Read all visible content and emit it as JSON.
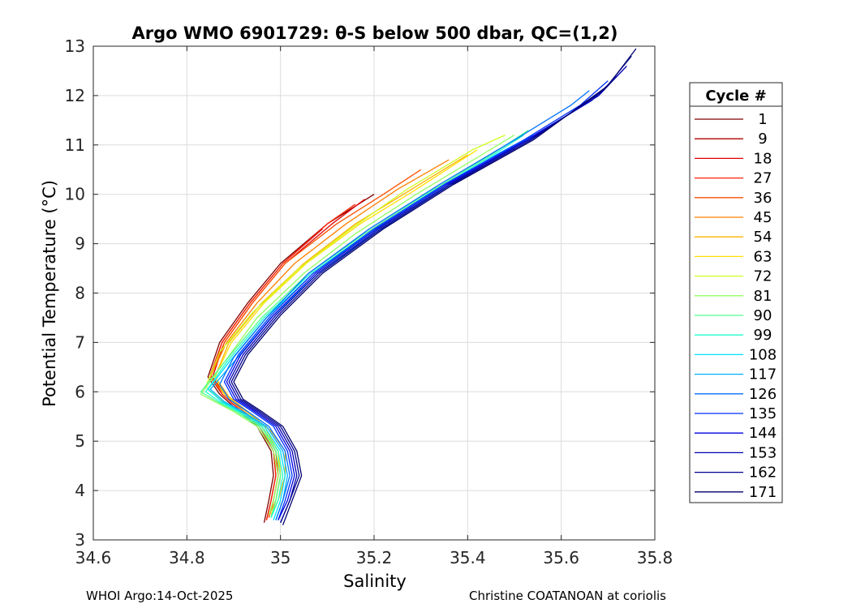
{
  "chart_data": {
    "type": "line",
    "title": "Argo WMO 6901729: θ-S below 500 dbar,  QC=(1,2)",
    "xlabel": "Salinity",
    "ylabel": "Potential Temperature (°C)",
    "xlim": [
      34.6,
      35.8
    ],
    "ylim": [
      3,
      13
    ],
    "xticks": [
      34.6,
      34.8,
      35,
      35.2,
      35.4,
      35.6,
      35.8
    ],
    "xtick_labels": [
      "34.6",
      "34.8",
      "35",
      "35.2",
      "35.4",
      "35.6",
      "35.8"
    ],
    "yticks": [
      3,
      4,
      5,
      6,
      7,
      8,
      9,
      10,
      11,
      12,
      13
    ],
    "ytick_labels": [
      "3",
      "4",
      "5",
      "6",
      "7",
      "8",
      "9",
      "10",
      "11",
      "12",
      "13"
    ],
    "grid": true,
    "legend": {
      "title": "Cycle #",
      "placement": "outside-right",
      "entries": [
        {
          "label": "1",
          "color": "#800000"
        },
        {
          "label": "9",
          "color": "#b00000"
        },
        {
          "label": "18",
          "color": "#e00000"
        },
        {
          "label": "27",
          "color": "#ff2000"
        },
        {
          "label": "36",
          "color": "#ff5000"
        },
        {
          "label": "45",
          "color": "#ff8000"
        },
        {
          "label": "54",
          "color": "#ffb000"
        },
        {
          "label": "63",
          "color": "#ffe000"
        },
        {
          "label": "72",
          "color": "#d0ff20"
        },
        {
          "label": "81",
          "color": "#90ff60"
        },
        {
          "label": "90",
          "color": "#50ff90"
        },
        {
          "label": "99",
          "color": "#20ffd0"
        },
        {
          "label": "108",
          "color": "#00e0ff"
        },
        {
          "label": "117",
          "color": "#00b0ff"
        },
        {
          "label": "126",
          "color": "#0070ff"
        },
        {
          "label": "135",
          "color": "#0030ff"
        },
        {
          "label": "144",
          "color": "#0000e0"
        },
        {
          "label": "153",
          "color": "#0000b0"
        },
        {
          "label": "162",
          "color": "#000090"
        },
        {
          "label": "171",
          "color": "#000070"
        }
      ]
    },
    "series": [
      {
        "name": "1",
        "color": "#800000",
        "S": [
          34.965,
          34.975,
          34.985,
          34.98,
          34.95,
          34.9,
          34.87,
          34.845,
          34.87,
          34.93,
          35.0,
          35.1,
          35.2
        ],
        "T": [
          3.35,
          3.8,
          4.3,
          4.8,
          5.3,
          5.7,
          5.95,
          6.3,
          7.0,
          7.8,
          8.6,
          9.4,
          10.0
        ]
      },
      {
        "name": "9",
        "color": "#b00000",
        "S": [
          34.97,
          34.98,
          34.99,
          34.985,
          34.955,
          34.905,
          34.875,
          34.85,
          34.875,
          34.935,
          35.005,
          35.09
        ],
        "T": [
          3.4,
          3.8,
          4.3,
          4.8,
          5.3,
          5.7,
          5.95,
          6.3,
          7.0,
          7.8,
          8.6,
          9.3
        ]
      },
      {
        "name": "18",
        "color": "#e00000",
        "S": [
          34.975,
          34.985,
          34.995,
          34.99,
          34.96,
          34.91,
          34.88,
          34.855,
          34.88,
          34.94,
          35.01,
          35.11,
          35.18
        ],
        "T": [
          3.45,
          3.8,
          4.3,
          4.8,
          5.3,
          5.7,
          5.95,
          6.3,
          7.0,
          7.8,
          8.6,
          9.4,
          9.9
        ]
      },
      {
        "name": "27",
        "color": "#ff2000",
        "S": [
          34.97,
          34.98,
          34.99,
          34.985,
          34.955,
          34.905,
          34.875,
          34.85,
          34.875,
          34.935,
          35.005,
          35.1,
          35.16
        ],
        "T": [
          3.4,
          3.8,
          4.3,
          4.8,
          5.3,
          5.7,
          5.95,
          6.35,
          7.0,
          7.8,
          8.6,
          9.4,
          9.8
        ]
      },
      {
        "name": "36",
        "color": "#ff5000",
        "S": [
          34.975,
          34.985,
          34.995,
          34.99,
          34.96,
          34.91,
          34.88,
          34.85,
          34.88,
          34.94,
          35.01,
          35.12,
          35.22,
          35.3
        ],
        "T": [
          3.45,
          3.8,
          4.3,
          4.8,
          5.3,
          5.7,
          5.95,
          6.3,
          7.0,
          7.8,
          8.6,
          9.4,
          10.0,
          10.5
        ]
      },
      {
        "name": "45",
        "color": "#ff8000",
        "S": [
          34.975,
          34.99,
          35.0,
          34.995,
          34.96,
          34.91,
          34.88,
          34.85,
          34.885,
          34.95,
          35.03,
          35.14,
          35.25,
          35.36
        ],
        "T": [
          3.5,
          3.8,
          4.3,
          4.8,
          5.3,
          5.7,
          5.95,
          6.3,
          7.0,
          7.8,
          8.6,
          9.4,
          10.1,
          10.7
        ]
      },
      {
        "name": "54",
        "color": "#ffb000",
        "S": [
          34.98,
          34.995,
          35.01,
          35.01,
          34.98,
          34.93,
          34.89,
          34.86,
          34.89,
          34.96,
          35.05,
          35.16,
          35.28,
          35.4
        ],
        "T": [
          3.5,
          3.8,
          4.3,
          4.8,
          5.2,
          5.6,
          5.9,
          6.3,
          7.0,
          7.8,
          8.6,
          9.4,
          10.1,
          10.8
        ]
      },
      {
        "name": "63",
        "color": "#ffe000",
        "S": [
          34.98,
          34.99,
          35.0,
          34.995,
          34.965,
          34.915,
          34.88,
          34.86,
          34.895,
          34.965,
          35.055,
          35.17,
          35.29,
          35.42
        ],
        "T": [
          3.5,
          3.8,
          4.3,
          4.8,
          5.3,
          5.7,
          5.95,
          6.3,
          7.0,
          7.8,
          8.6,
          9.4,
          10.1,
          10.9
        ]
      },
      {
        "name": "72",
        "color": "#d0ff20",
        "S": [
          34.98,
          34.99,
          35.0,
          34.99,
          34.96,
          34.91,
          34.87,
          34.84,
          34.87,
          34.94,
          35.04,
          35.15,
          35.27,
          35.41,
          35.48
        ],
        "T": [
          3.5,
          3.8,
          4.3,
          4.8,
          5.3,
          5.6,
          5.85,
          6.1,
          6.8,
          7.6,
          8.5,
          9.3,
          10.1,
          10.9,
          11.2
        ]
      },
      {
        "name": "81",
        "color": "#90ff60",
        "S": [
          34.975,
          34.985,
          34.995,
          34.985,
          34.95,
          34.9,
          34.86,
          34.83,
          34.88,
          34.95,
          35.05,
          35.16,
          35.29,
          35.43,
          35.5
        ],
        "T": [
          3.5,
          3.8,
          4.3,
          4.8,
          5.3,
          5.6,
          5.8,
          5.95,
          6.6,
          7.5,
          8.4,
          9.2,
          10.0,
          10.8,
          11.2
        ]
      },
      {
        "name": "90",
        "color": "#50ff90",
        "S": [
          34.98,
          34.99,
          35.0,
          34.99,
          34.955,
          34.905,
          34.865,
          34.83,
          34.88,
          34.96,
          35.06,
          35.18,
          35.31,
          35.45,
          35.53
        ],
        "T": [
          3.45,
          3.8,
          4.3,
          4.8,
          5.3,
          5.6,
          5.8,
          6.0,
          6.6,
          7.5,
          8.4,
          9.2,
          10.0,
          10.8,
          11.3
        ]
      },
      {
        "name": "99",
        "color": "#20ffd0",
        "S": [
          34.98,
          34.995,
          35.005,
          34.995,
          34.96,
          34.91,
          34.87,
          34.84,
          34.885,
          34.965,
          35.065,
          35.185,
          35.315,
          35.455,
          35.52
        ],
        "T": [
          3.45,
          3.8,
          4.3,
          4.8,
          5.3,
          5.6,
          5.8,
          6.0,
          6.6,
          7.5,
          8.4,
          9.2,
          10.0,
          10.8,
          11.2
        ]
      },
      {
        "name": "108",
        "color": "#00e0ff",
        "S": [
          34.985,
          35.0,
          35.01,
          35.0,
          34.965,
          34.915,
          34.875,
          34.845,
          34.89,
          34.97,
          35.07,
          35.19,
          35.32,
          35.46,
          35.54
        ],
        "T": [
          3.4,
          3.8,
          4.3,
          4.8,
          5.3,
          5.6,
          5.8,
          6.05,
          6.6,
          7.5,
          8.4,
          9.2,
          10.0,
          10.8,
          11.2
        ]
      },
      {
        "name": "117",
        "color": "#00b0ff",
        "S": [
          34.99,
          35.005,
          35.015,
          35.005,
          34.97,
          34.92,
          34.88,
          34.85,
          34.9,
          34.98,
          35.08,
          35.2,
          35.33,
          35.47,
          35.55
        ],
        "T": [
          3.4,
          3.8,
          4.3,
          4.8,
          5.3,
          5.6,
          5.8,
          6.05,
          6.6,
          7.5,
          8.4,
          9.2,
          10.0,
          10.8,
          11.2
        ]
      },
      {
        "name": "126",
        "color": "#0070ff",
        "S": [
          34.99,
          35.005,
          35.02,
          35.01,
          34.975,
          34.93,
          34.89,
          34.87,
          34.9,
          34.97,
          35.06,
          35.19,
          35.34,
          35.5,
          35.62,
          35.66
        ],
        "T": [
          3.4,
          3.8,
          4.3,
          4.8,
          5.3,
          5.6,
          5.85,
          6.15,
          6.7,
          7.5,
          8.4,
          9.3,
          10.2,
          11.1,
          11.8,
          12.1
        ]
      },
      {
        "name": "135",
        "color": "#0030ff",
        "S": [
          34.995,
          35.01,
          35.025,
          35.015,
          34.985,
          34.94,
          34.9,
          34.88,
          34.91,
          34.98,
          35.07,
          35.2,
          35.35,
          35.52,
          35.64,
          35.7
        ],
        "T": [
          3.4,
          3.8,
          4.3,
          4.8,
          5.3,
          5.6,
          5.85,
          6.2,
          6.75,
          7.55,
          8.4,
          9.3,
          10.2,
          11.1,
          11.8,
          12.3
        ]
      },
      {
        "name": "144",
        "color": "#0000e0",
        "S": [
          34.995,
          35.015,
          35.03,
          35.02,
          34.99,
          34.945,
          34.905,
          34.885,
          34.915,
          34.985,
          35.075,
          35.205,
          35.355,
          35.525,
          35.665,
          35.72
        ],
        "T": [
          3.4,
          3.8,
          4.3,
          4.8,
          5.3,
          5.6,
          5.85,
          6.2,
          6.75,
          7.55,
          8.4,
          9.3,
          10.2,
          11.1,
          11.9,
          12.4
        ]
      },
      {
        "name": "153",
        "color": "#0000b0",
        "S": [
          35.0,
          35.02,
          35.035,
          35.025,
          34.995,
          34.95,
          34.91,
          34.89,
          34.92,
          34.99,
          35.08,
          35.21,
          35.36,
          35.53,
          35.68,
          35.74
        ],
        "T": [
          3.35,
          3.8,
          4.3,
          4.8,
          5.3,
          5.6,
          5.85,
          6.2,
          6.75,
          7.55,
          8.4,
          9.3,
          10.2,
          11.1,
          12.0,
          12.6
        ]
      },
      {
        "name": "162",
        "color": "#000090",
        "S": [
          35.0,
          35.02,
          35.04,
          35.03,
          35.0,
          34.955,
          34.915,
          34.895,
          34.925,
          34.995,
          35.085,
          35.215,
          35.365,
          35.535,
          35.69,
          35.75
        ],
        "T": [
          3.35,
          3.8,
          4.3,
          4.8,
          5.3,
          5.6,
          5.85,
          6.2,
          6.75,
          7.55,
          8.4,
          9.3,
          10.2,
          11.1,
          12.1,
          12.8
        ]
      },
      {
        "name": "171",
        "color": "#000070",
        "S": [
          35.005,
          35.025,
          35.045,
          35.035,
          35.005,
          34.96,
          34.92,
          34.9,
          34.93,
          35.0,
          35.09,
          35.22,
          35.37,
          35.54,
          35.7,
          35.76
        ],
        "T": [
          3.3,
          3.8,
          4.3,
          4.8,
          5.3,
          5.6,
          5.85,
          6.2,
          6.75,
          7.55,
          8.4,
          9.3,
          10.2,
          11.1,
          12.2,
          12.95
        ]
      }
    ]
  },
  "footer": {
    "left": "WHOI Argo:14-Oct-2025",
    "right": "Christine COATANOAN at coriolis"
  }
}
